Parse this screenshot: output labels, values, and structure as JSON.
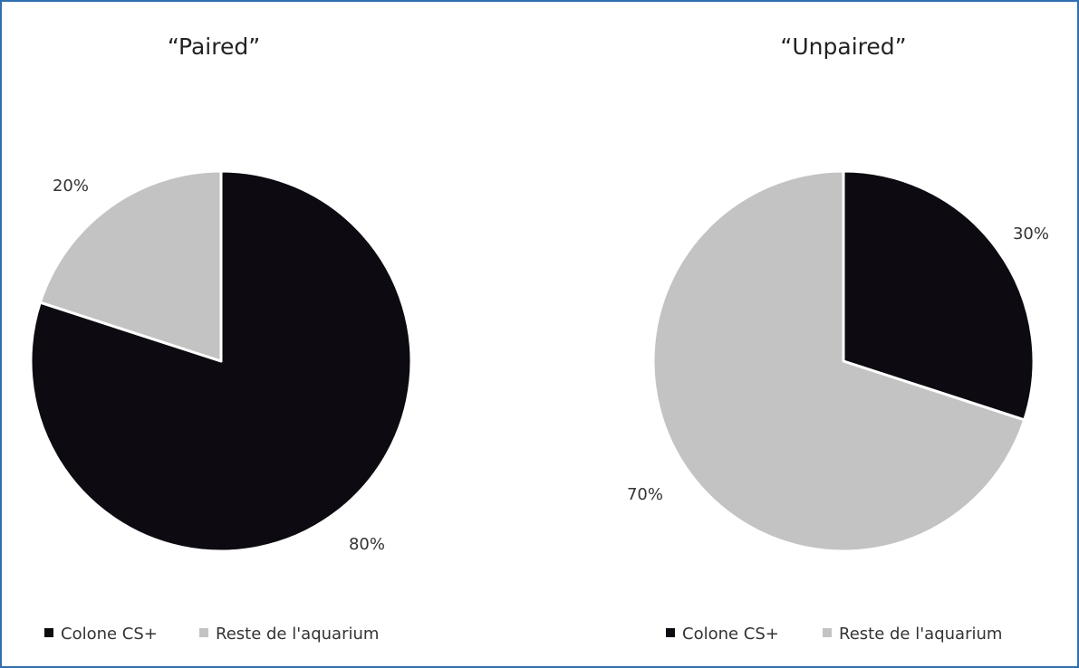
{
  "chart_data": [
    {
      "type": "pie",
      "title": "“Paired”",
      "slices": [
        {
          "label": "Colone CS+",
          "value": 80,
          "display": "80%",
          "color": "#0d0b11"
        },
        {
          "label": "Reste de l'aquarium",
          "value": 20,
          "display": "20%",
          "color": "#c3c3c3"
        }
      ],
      "legend": {
        "position": "bottom-left",
        "entries": [
          {
            "label": "Colone CS+",
            "color": "#0d0b11"
          },
          {
            "label": "Reste de l'aquarium",
            "color": "#c3c3c3"
          }
        ]
      }
    },
    {
      "type": "pie",
      "title": "“Unpaired”",
      "slices": [
        {
          "label": "Colone CS+",
          "value": 30,
          "display": "30%",
          "color": "#0d0b11"
        },
        {
          "label": "Reste de l'aquarium",
          "value": 70,
          "display": "70%",
          "color": "#c3c3c3"
        }
      ],
      "legend": {
        "position": "bottom-center",
        "entries": [
          {
            "label": "Colone CS+",
            "color": "#0d0b11"
          },
          {
            "label": "Reste de l'aquarium",
            "color": "#c3c3c3"
          }
        ]
      }
    }
  ],
  "colors": {
    "frame_border": "#2f6fb0",
    "slice_separator": "#ffffff"
  }
}
